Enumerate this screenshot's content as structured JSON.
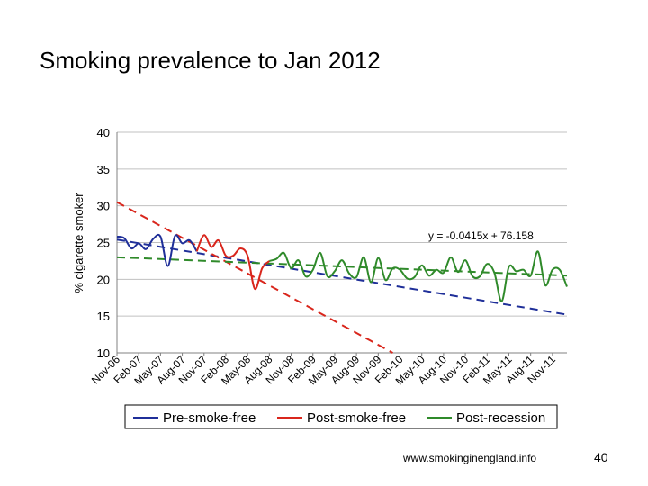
{
  "slide": {
    "title": "Smoking prevalence to Jan 2012",
    "footer_url": "www.smokinginengland.info",
    "page_number": "40"
  },
  "chart_data": {
    "type": "line",
    "title": "",
    "xlabel": "",
    "ylabel": "% cigarette smoker",
    "ylim": [
      10,
      40
    ],
    "yticks": [
      10,
      15,
      20,
      25,
      30,
      35,
      40
    ],
    "xlim": [
      0,
      62
    ],
    "categories": [
      "Nov-06",
      "Feb-07",
      "May-07",
      "Aug-07",
      "Nov-07",
      "Feb-08",
      "May-08",
      "Aug-08",
      "Nov-08",
      "Feb-09",
      "May-09",
      "Aug-09",
      "Nov-09",
      "Feb-10",
      "May-10",
      "Aug-10",
      "Nov-10",
      "Feb-11",
      "May-11",
      "Aug-11",
      "Nov-11"
    ],
    "category_index": [
      0,
      3,
      6,
      9,
      12,
      15,
      18,
      21,
      24,
      27,
      30,
      33,
      36,
      39,
      42,
      45,
      48,
      51,
      54,
      57,
      60
    ],
    "annotation": "y = -0.0415x + 76.158",
    "legend": {
      "position": "bottom"
    },
    "series": [
      {
        "name": "Pre-smoke-free",
        "color": "#1f2f99",
        "style": "solid",
        "points": [
          [
            0,
            25.8
          ],
          [
            1,
            25.6
          ],
          [
            2,
            24.2
          ],
          [
            3,
            24.9
          ],
          [
            4,
            24.1
          ],
          [
            5,
            25.5
          ],
          [
            6,
            25.8
          ],
          [
            7,
            21.8
          ],
          [
            8,
            25.9
          ],
          [
            9,
            24.9
          ],
          [
            10,
            25.3
          ],
          [
            11,
            23.8
          ]
        ]
      },
      {
        "name": "Post-smoke-free",
        "color": "#d9261c",
        "style": "solid",
        "points": [
          [
            11,
            23.8
          ],
          [
            12,
            26.0
          ],
          [
            13,
            24.4
          ],
          [
            14,
            25.3
          ],
          [
            15,
            23.2
          ],
          [
            16,
            23.2
          ],
          [
            17,
            24.2
          ],
          [
            18,
            23.2
          ],
          [
            19,
            18.7
          ],
          [
            20,
            21.5
          ],
          [
            21,
            22.5
          ]
        ]
      },
      {
        "name": "Post-recession",
        "color": "#2f8a2a",
        "style": "solid",
        "points": [
          [
            21,
            22.5
          ],
          [
            22,
            22.8
          ],
          [
            23,
            23.6
          ],
          [
            24,
            21.5
          ],
          [
            25,
            22.6
          ],
          [
            26,
            20.4
          ],
          [
            27,
            21.3
          ],
          [
            28,
            23.6
          ],
          [
            29,
            20.4
          ],
          [
            30,
            21.1
          ],
          [
            31,
            22.6
          ],
          [
            32,
            20.8
          ],
          [
            33,
            20.3
          ],
          [
            34,
            23.0
          ],
          [
            35,
            19.6
          ],
          [
            36,
            22.9
          ],
          [
            37,
            19.9
          ],
          [
            38,
            21.5
          ],
          [
            39,
            21.3
          ],
          [
            40,
            20.1
          ],
          [
            41,
            20.3
          ],
          [
            42,
            21.9
          ],
          [
            43,
            20.5
          ],
          [
            44,
            21.3
          ],
          [
            45,
            20.9
          ],
          [
            46,
            23.0
          ],
          [
            47,
            21.0
          ],
          [
            48,
            22.6
          ],
          [
            49,
            20.4
          ],
          [
            50,
            20.4
          ],
          [
            51,
            22.1
          ],
          [
            52,
            20.9
          ],
          [
            53,
            17.0
          ],
          [
            54,
            21.7
          ],
          [
            55,
            21.1
          ],
          [
            56,
            21.3
          ],
          [
            57,
            20.5
          ],
          [
            58,
            23.8
          ],
          [
            59,
            19.2
          ],
          [
            60,
            21.3
          ],
          [
            61,
            21.3
          ],
          [
            62,
            19.0
          ]
        ]
      }
    ],
    "trendlines": [
      {
        "name": "Pre-smoke-free trend",
        "color": "#1f2f99",
        "style": "dashed",
        "points": [
          [
            0,
            25.4
          ],
          [
            62,
            15.2
          ]
        ]
      },
      {
        "name": "Post-smoke-free trend",
        "color": "#d9261c",
        "style": "dashed",
        "points": [
          [
            0,
            30.5
          ],
          [
            38,
            10.0
          ]
        ]
      },
      {
        "name": "Post-recession trend",
        "color": "#2f8a2a",
        "style": "dashed",
        "points": [
          [
            0,
            23.0
          ],
          [
            62,
            20.5
          ]
        ]
      }
    ]
  }
}
